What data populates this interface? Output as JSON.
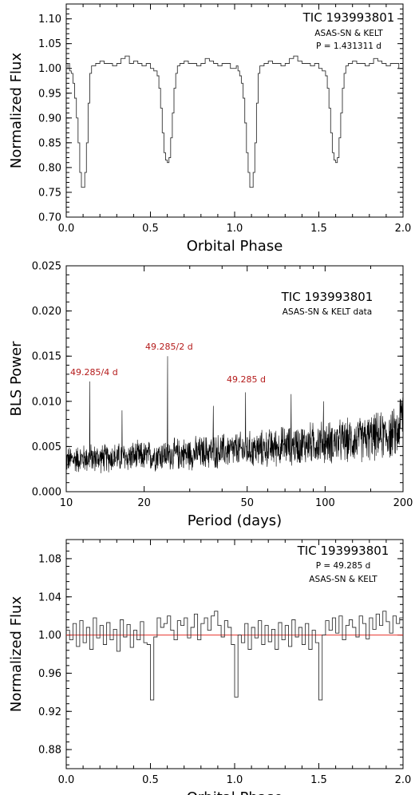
{
  "chart_data": [
    {
      "type": "line",
      "ylabel": "Normalized Flux",
      "xlabel": "Orbital Phase",
      "xlim": [
        0.0,
        2.0
      ],
      "ylim": [
        0.7,
        1.13
      ],
      "xticks": [
        "0.0",
        "0.5",
        "1.0",
        "1.5",
        "2.0"
      ],
      "yticks": [
        "0.70",
        "0.75",
        "0.80",
        "0.85",
        "0.90",
        "0.95",
        "1.00",
        "1.05",
        "1.10"
      ],
      "annotations": [
        "TIC 193993801",
        "ASAS-SN & KELT",
        "P = 1.431311 d"
      ],
      "series": [
        {
          "style": "step",
          "x": [
            0.0,
            0.01,
            0.02,
            0.03,
            0.04,
            0.05,
            0.06,
            0.07,
            0.08,
            0.09,
            0.1,
            0.11,
            0.12,
            0.13,
            0.14,
            0.15,
            0.175,
            0.2,
            0.225,
            0.25,
            0.275,
            0.3,
            0.325,
            0.35,
            0.375,
            0.4,
            0.425,
            0.45,
            0.475,
            0.5,
            0.52,
            0.54,
            0.55,
            0.56,
            0.57,
            0.58,
            0.59,
            0.6,
            0.61,
            0.62,
            0.63,
            0.64,
            0.65,
            0.66,
            0.675,
            0.7,
            0.725,
            0.75,
            0.775,
            0.8,
            0.825,
            0.85,
            0.875,
            0.9,
            0.925,
            0.95,
            0.975,
            1.0,
            1.01,
            1.02,
            1.03,
            1.04,
            1.05,
            1.06,
            1.07,
            1.08,
            1.09,
            1.1,
            1.11,
            1.12,
            1.13,
            1.14,
            1.15,
            1.175,
            1.2,
            1.225,
            1.25,
            1.275,
            1.3,
            1.325,
            1.35,
            1.375,
            1.4,
            1.425,
            1.45,
            1.475,
            1.5,
            1.52,
            1.54,
            1.55,
            1.56,
            1.57,
            1.58,
            1.59,
            1.6,
            1.61,
            1.62,
            1.63,
            1.64,
            1.65,
            1.66,
            1.675,
            1.7,
            1.725,
            1.75,
            1.775,
            1.8,
            1.825,
            1.85,
            1.875,
            1.9,
            1.925,
            1.95,
            1.975,
            2.0
          ],
          "y": [
            1.0,
            1.01,
            0.995,
            0.99,
            0.97,
            0.94,
            0.9,
            0.85,
            0.79,
            0.76,
            0.76,
            0.79,
            0.85,
            0.93,
            0.99,
            1.005,
            1.01,
            1.015,
            1.01,
            1.01,
            1.005,
            1.01,
            1.02,
            1.025,
            1.01,
            1.015,
            1.01,
            1.005,
            1.01,
            1.0,
            0.995,
            0.985,
            0.96,
            0.92,
            0.87,
            0.83,
            0.815,
            0.81,
            0.82,
            0.86,
            0.91,
            0.96,
            0.99,
            1.005,
            1.01,
            1.015,
            1.01,
            1.01,
            1.005,
            1.01,
            1.02,
            1.015,
            1.01,
            1.005,
            1.01,
            1.01,
            1.0,
            1.0,
            1.005,
            0.995,
            0.985,
            0.97,
            0.94,
            0.89,
            0.83,
            0.79,
            0.76,
            0.76,
            0.79,
            0.85,
            0.93,
            0.99,
            1.005,
            1.01,
            1.015,
            1.01,
            1.01,
            1.005,
            1.01,
            1.02,
            1.025,
            1.015,
            1.01,
            1.01,
            1.005,
            1.01,
            1.0,
            0.995,
            0.985,
            0.96,
            0.92,
            0.87,
            0.83,
            0.815,
            0.81,
            0.82,
            0.86,
            0.91,
            0.96,
            0.99,
            1.005,
            1.01,
            1.015,
            1.01,
            1.01,
            1.005,
            1.01,
            1.02,
            1.015,
            1.01,
            1.005,
            1.01,
            1.01,
            1.0,
            1.0
          ]
        }
      ]
    },
    {
      "type": "line",
      "ylabel": "BLS Power",
      "xlabel": "Period (days)",
      "xscale": "log",
      "xlim": [
        10,
        200
      ],
      "ylim": [
        0.0,
        0.025
      ],
      "xticks": [
        "10",
        "20",
        "50",
        "100",
        "200"
      ],
      "yticks": [
        "0.000",
        "0.005",
        "0.010",
        "0.015",
        "0.020",
        "0.025"
      ],
      "annotations": [
        "TIC 193993801",
        "ASAS-SN & KELT data"
      ],
      "peak_labels": [
        {
          "text": "49.285/4 d",
          "period": 12.32,
          "power": 0.0122
        },
        {
          "text": "49.285/2 d",
          "period": 24.64,
          "power": 0.015
        },
        {
          "text": "49.285 d",
          "period": 49.285,
          "power": 0.011
        }
      ],
      "series": [
        {
          "style": "noisy",
          "x": [
            10,
            11,
            12,
            12.32,
            13,
            14,
            15,
            16,
            16.43,
            17,
            18,
            20,
            22,
            24,
            24.64,
            26,
            28,
            30,
            33,
            35,
            37,
            40,
            45,
            49.285,
            55,
            60,
            65,
            70,
            73.9,
            80,
            90,
            98.6,
            110,
            120,
            130,
            140,
            150,
            160,
            170,
            180,
            190,
            200
          ],
          "y": [
            0.0035,
            0.0036,
            0.0037,
            0.0122,
            0.0037,
            0.0037,
            0.0038,
            0.0038,
            0.009,
            0.0038,
            0.0039,
            0.0039,
            0.004,
            0.0041,
            0.015,
            0.0041,
            0.0042,
            0.0042,
            0.0043,
            0.0044,
            0.0095,
            0.0045,
            0.0046,
            0.011,
            0.0047,
            0.0048,
            0.005,
            0.0051,
            0.0108,
            0.0052,
            0.0054,
            0.01,
            0.0055,
            0.0056,
            0.0057,
            0.0058,
            0.006,
            0.0061,
            0.0062,
            0.0063,
            0.0065,
            0.009
          ]
        }
      ]
    },
    {
      "type": "line",
      "ylabel": "Normalized Flux",
      "xlabel": "Orbital Phase",
      "xlim": [
        0.0,
        2.0
      ],
      "ylim": [
        0.86,
        1.1
      ],
      "xticks": [
        "0.0",
        "0.5",
        "1.0",
        "1.5",
        "2.0"
      ],
      "yticks": [
        "0.88",
        "0.92",
        "0.96",
        "1.00",
        "1.04",
        "1.08"
      ],
      "annotations": [
        "TIC 193993801",
        "P = 49.285 d",
        "ASAS-SN & KELT"
      ],
      "reference_line": {
        "y": 1.0,
        "color": "#e8322b"
      },
      "series": [
        {
          "style": "step",
          "x": [
            0.0,
            0.02,
            0.04,
            0.06,
            0.08,
            0.1,
            0.12,
            0.14,
            0.16,
            0.18,
            0.2,
            0.22,
            0.24,
            0.26,
            0.28,
            0.3,
            0.32,
            0.34,
            0.36,
            0.38,
            0.4,
            0.42,
            0.44,
            0.46,
            0.48,
            0.5,
            0.52,
            0.54,
            0.56,
            0.58,
            0.6,
            0.62,
            0.64,
            0.66,
            0.68,
            0.7,
            0.72,
            0.74,
            0.76,
            0.78,
            0.8,
            0.82,
            0.84,
            0.86,
            0.88,
            0.9,
            0.92,
            0.94,
            0.96,
            0.98,
            1.0,
            1.02,
            1.04,
            1.06,
            1.08,
            1.1,
            1.12,
            1.14,
            1.16,
            1.18,
            1.2,
            1.22,
            1.24,
            1.26,
            1.28,
            1.3,
            1.32,
            1.34,
            1.36,
            1.38,
            1.4,
            1.42,
            1.44,
            1.46,
            1.48,
            1.5,
            1.52,
            1.54,
            1.56,
            1.58,
            1.6,
            1.62,
            1.64,
            1.66,
            1.68,
            1.7,
            1.72,
            1.74,
            1.76,
            1.78,
            1.8,
            1.82,
            1.84,
            1.86,
            1.88,
            1.9,
            1.92,
            1.94,
            1.96,
            1.98,
            2.0
          ],
          "y": [
            1.005,
            0.995,
            1.012,
            0.988,
            1.015,
            0.992,
            1.008,
            0.985,
            1.018,
            0.997,
            1.01,
            0.99,
            1.013,
            0.995,
            1.006,
            0.983,
            1.016,
            0.998,
            1.011,
            0.987,
            1.005,
            0.995,
            1.014,
            0.992,
            0.99,
            0.932,
            0.998,
            1.018,
            1.008,
            1.012,
            1.02,
            1.005,
            0.995,
            1.015,
            1.01,
            1.018,
            0.997,
            1.008,
            1.022,
            0.995,
            1.012,
            1.018,
            1.005,
            1.02,
            1.025,
            1.01,
            0.998,
            1.015,
            1.008,
            0.99,
            0.935,
            1.0,
            0.992,
            1.012,
            0.985,
            1.008,
            0.997,
            1.015,
            0.99,
            1.01,
            0.993,
            1.006,
            0.985,
            1.013,
            0.995,
            1.01,
            0.988,
            1.016,
            0.998,
            1.008,
            0.99,
            1.012,
            0.985,
            1.005,
            0.992,
            0.932,
            1.0,
            1.015,
            1.005,
            1.018,
            1.002,
            1.02,
            0.995,
            1.01,
            1.016,
            1.008,
            0.998,
            1.02,
            1.012,
            0.996,
            1.018,
            1.006,
            1.022,
            1.01,
            1.025,
            1.014,
            1.002,
            1.02,
            1.012,
            1.018,
            1.008
          ]
        }
      ]
    }
  ]
}
